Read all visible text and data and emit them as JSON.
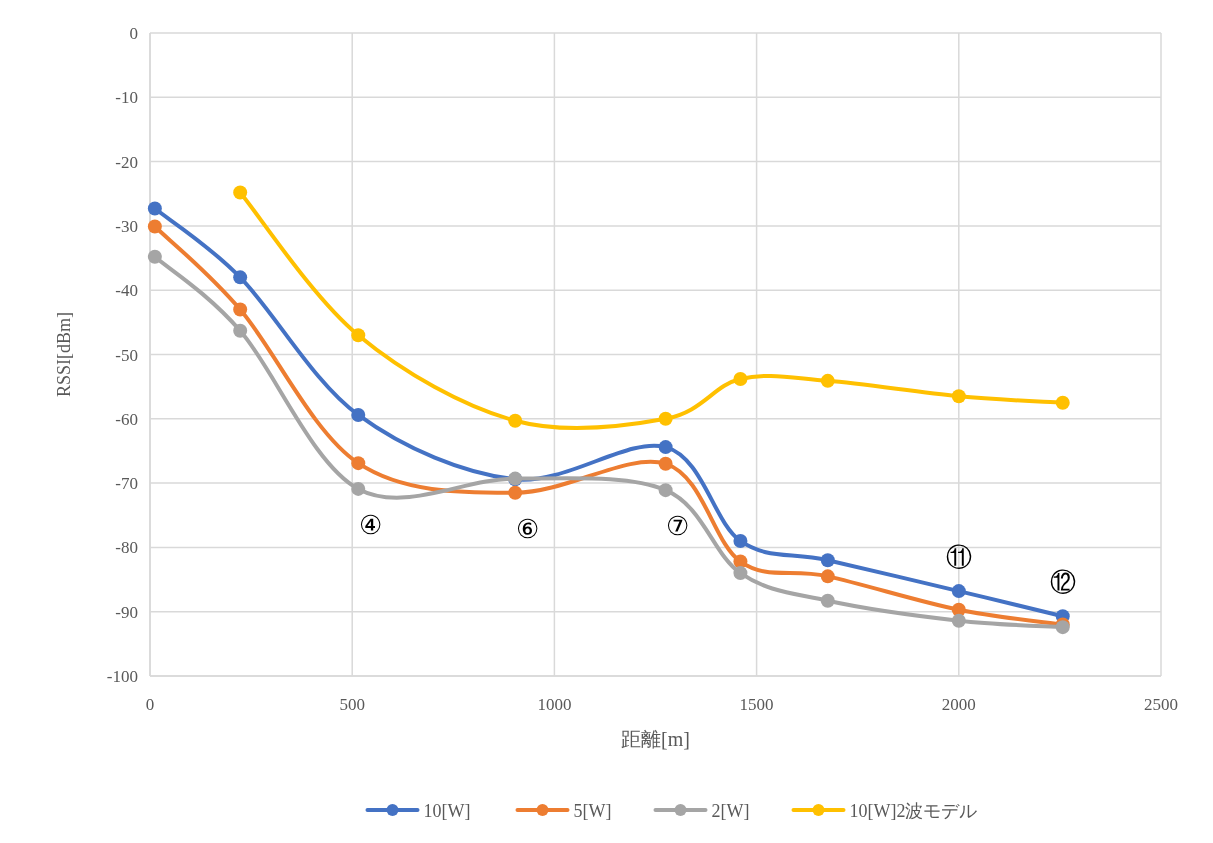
{
  "chart_data": {
    "type": "line",
    "xlabel": "距離[m]",
    "ylabel": "RSSI[dBm]",
    "xlim": [
      0,
      2500
    ],
    "xticks": [
      0,
      500,
      1000,
      1500,
      2000,
      2500
    ],
    "ylim": [
      -100,
      0
    ],
    "yticks": [
      -100,
      -90,
      -80,
      -70,
      -60,
      -50,
      -40,
      -30,
      -20,
      -10,
      0
    ],
    "grid": true,
    "legend": "bottom",
    "marker": "circle",
    "line_style": "solid",
    "series": [
      {
        "name": "10[W]",
        "color": "#4472c4",
        "x": [
          12,
          223,
          515,
          903,
          1275,
          1460,
          1676,
          2000,
          2257
        ],
        "values": [
          -27.3,
          -38,
          -59.4,
          -69.4,
          -64.4,
          -79,
          -82,
          -86.8,
          -90.7
        ]
      },
      {
        "name": "5[W]",
        "color": "#ed7d31",
        "x": [
          12,
          223,
          515,
          903,
          1275,
          1460,
          1676,
          2000,
          2257
        ],
        "values": [
          -30.1,
          -43,
          -66.9,
          -71.5,
          -67,
          -82.2,
          -84.5,
          -89.7,
          -92
        ]
      },
      {
        "name": "2[W]",
        "color": "#a5a5a5",
        "x": [
          12,
          223,
          515,
          903,
          1275,
          1460,
          1676,
          2000,
          2257
        ],
        "values": [
          -34.8,
          -46.3,
          -70.9,
          -69.3,
          -71.1,
          -84,
          -88.3,
          -91.4,
          -92.4
        ]
      },
      {
        "name": "10[W]2波モデル",
        "color": "#ffc000",
        "x": [
          223,
          515,
          903,
          1275,
          1460,
          1676,
          2000,
          2257
        ],
        "values": [
          -24.8,
          -47,
          -60.3,
          -60,
          -53.8,
          -54.1,
          -56.5,
          -57.5
        ]
      }
    ],
    "annotations": [
      {
        "text": "④",
        "x": 515,
        "y": -70.9
      },
      {
        "text": "⑥",
        "x": 903,
        "y": -71.5
      },
      {
        "text": "⑦",
        "x": 1275,
        "y": -71.1
      },
      {
        "text": "⑪",
        "x": 2000,
        "y": -86.8
      },
      {
        "text": "⑫",
        "x": 2257,
        "y": -90.7
      }
    ]
  }
}
